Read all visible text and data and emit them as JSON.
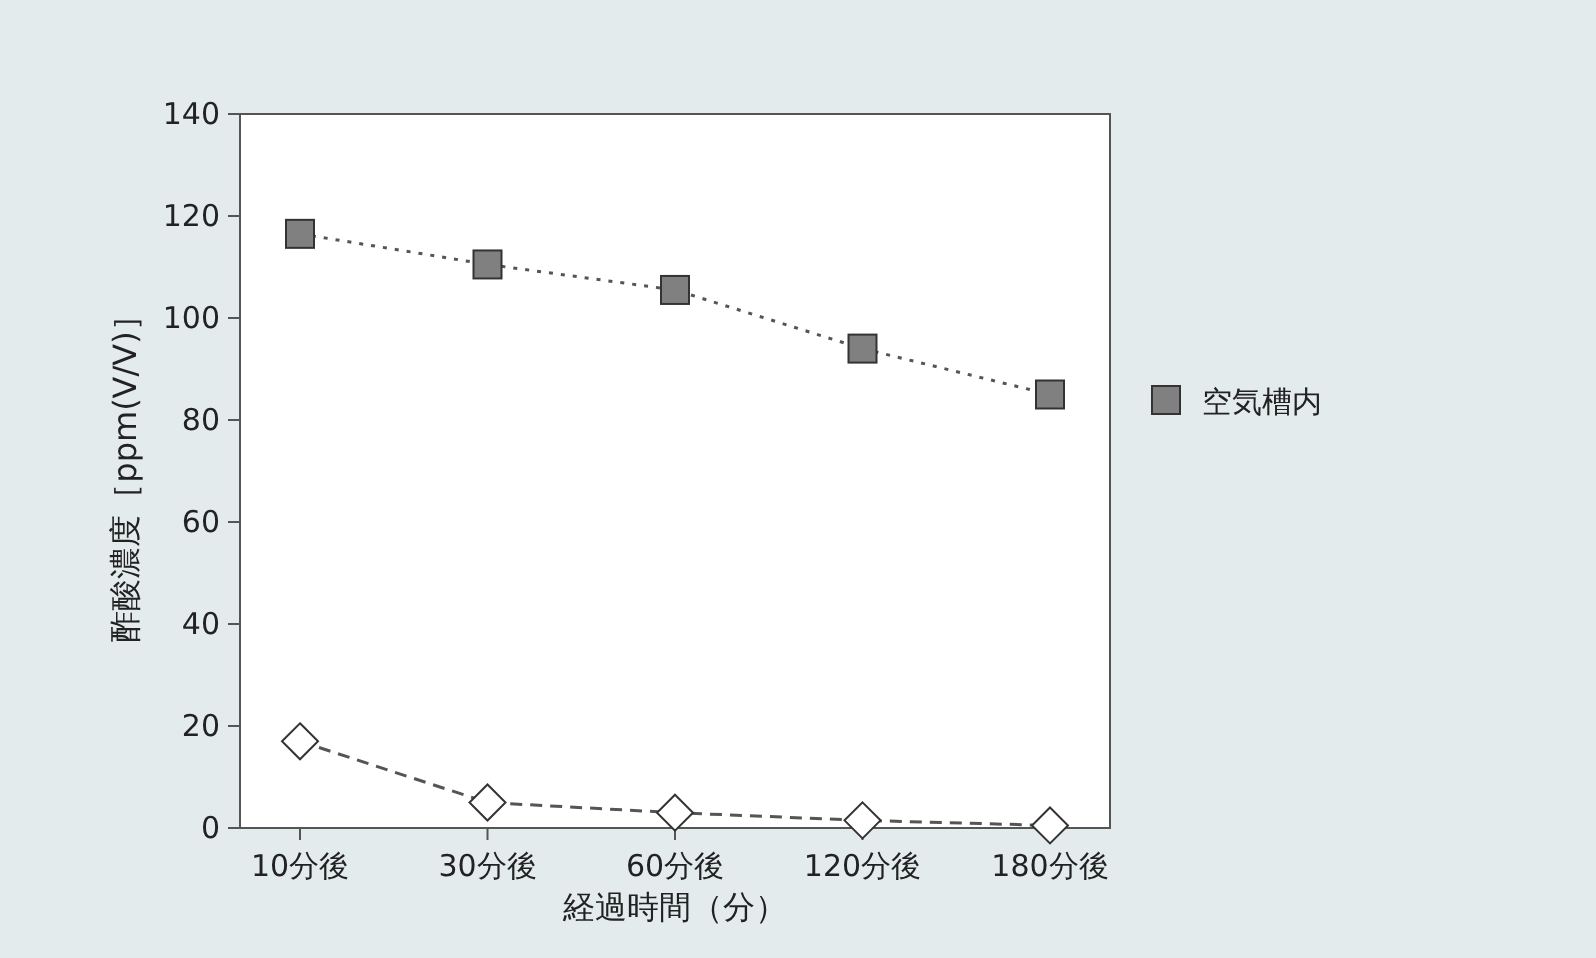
{
  "chart_data": {
    "type": "line",
    "xlabel": "経過時間（分）",
    "ylabel": "酢酸濃度［ppm(V/V)］",
    "categories": [
      "10分後",
      "30分後",
      "60分後",
      "120分後",
      "180分後"
    ],
    "series": [
      {
        "name": "空気槽内",
        "color": "#808080",
        "marker": "square",
        "line_style": "dotted",
        "values": [
          116.5,
          110.5,
          105.5,
          94,
          85
        ]
      },
      {
        "color": "#ffffff",
        "marker": "diamond",
        "line_style": "dashed",
        "values": [
          17,
          5,
          3,
          1.5,
          0.5
        ]
      }
    ],
    "ylim": [
      0,
      140
    ],
    "yticks": [
      0,
      20,
      40,
      60,
      80,
      100,
      120,
      140
    ],
    "grid": false,
    "legend": "right"
  }
}
